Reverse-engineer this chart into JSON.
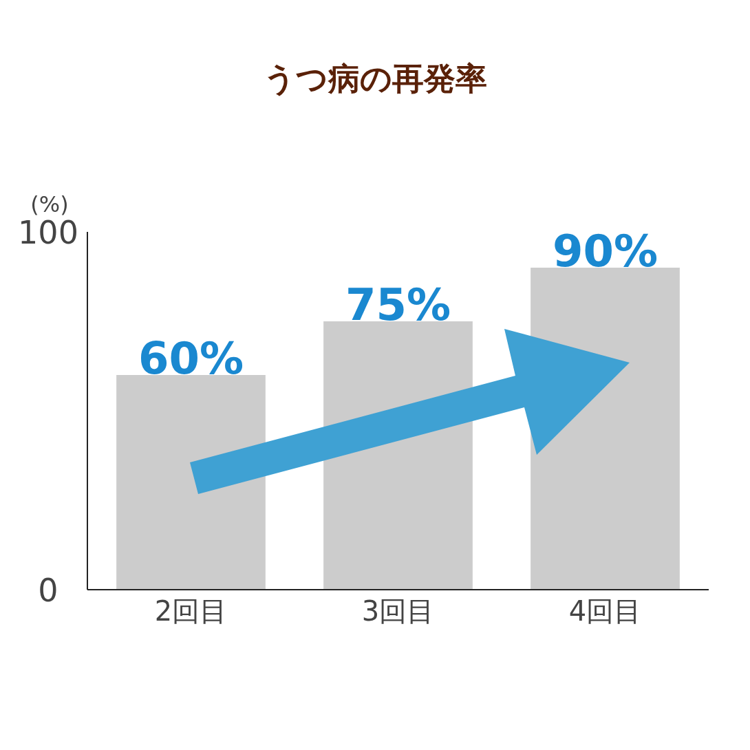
{
  "chart_data": {
    "type": "bar",
    "title": "うつ病の再発率",
    "ylabel": "(%)",
    "categories": [
      "2回目",
      "3回目",
      "4回目"
    ],
    "values": [
      60,
      75,
      90
    ],
    "value_labels": [
      "60%",
      "75%",
      "90%"
    ],
    "color": "#cccccc",
    "ylim": [
      0,
      100
    ],
    "yticks": [
      0,
      100
    ]
  }
}
